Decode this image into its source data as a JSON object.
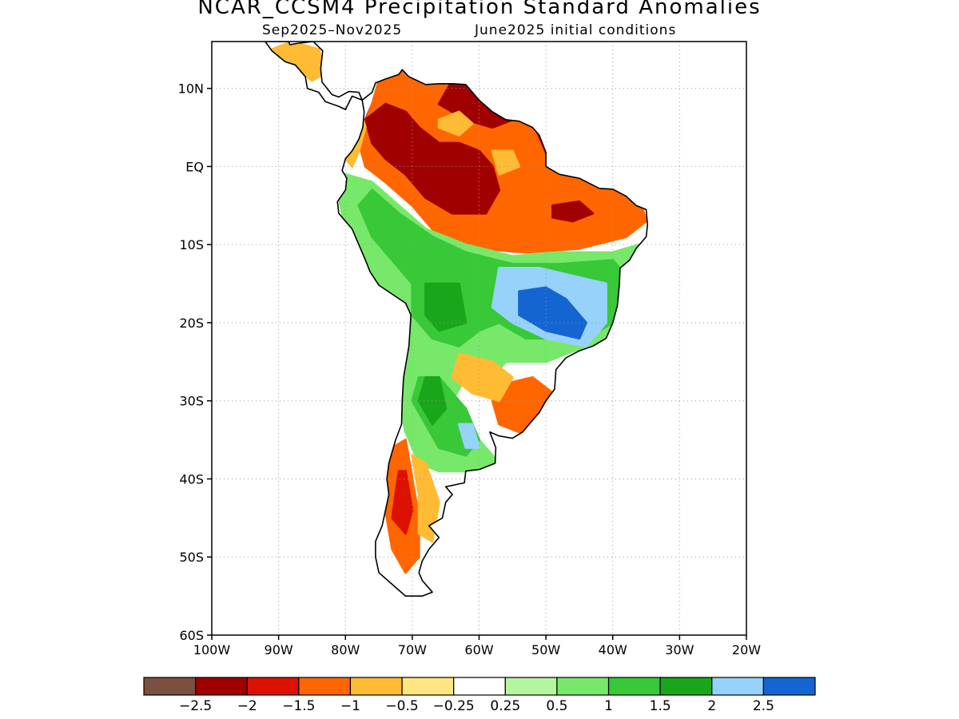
{
  "title": "NCAR_CCSM4 Precipitation Standard Anomalies",
  "subtitle_period": "Sep2025–Nov2025",
  "subtitle_init": "June2025 initial conditions",
  "lat_ticks": [
    {
      "value": 10,
      "label": "10N"
    },
    {
      "value": 0,
      "label": "EQ"
    },
    {
      "value": -10,
      "label": "10S"
    },
    {
      "value": -20,
      "label": "20S"
    },
    {
      "value": -30,
      "label": "30S"
    },
    {
      "value": -40,
      "label": "40S"
    },
    {
      "value": -50,
      "label": "50S"
    },
    {
      "value": -60,
      "label": "60S"
    }
  ],
  "lon_ticks": [
    {
      "value": -100,
      "label": "100W"
    },
    {
      "value": -90,
      "label": "90W"
    },
    {
      "value": -80,
      "label": "80W"
    },
    {
      "value": -70,
      "label": "70W"
    },
    {
      "value": -60,
      "label": "60W"
    },
    {
      "value": -50,
      "label": "50W"
    },
    {
      "value": -40,
      "label": "40W"
    },
    {
      "value": -30,
      "label": "30W"
    },
    {
      "value": -20,
      "label": "20W"
    }
  ],
  "map_extent": {
    "lon_min": -100,
    "lon_max": -20,
    "lat_min": -60,
    "lat_max": 16
  },
  "colorbar": {
    "colors": [
      "#7a5040",
      "#a00000",
      "#dd1100",
      "#ff6600",
      "#ffbb33",
      "#ffe680",
      "#ffffff",
      "#b4f5a0",
      "#78e86a",
      "#38c838",
      "#1aa61a",
      "#96d2fa",
      "#1464d2"
    ],
    "labels": [
      "−2.5",
      "−2",
      "−1.5",
      "−1",
      "−0.5",
      "−0.25",
      "0.25",
      "0.5",
      "1",
      "1.5",
      "2",
      "2.5"
    ]
  },
  "anomaly_regions": [
    {
      "level": -2.0,
      "color": "#dd1100",
      "polygon": [
        [
          -72,
          12
        ],
        [
          -70,
          12
        ],
        [
          -64,
          11
        ],
        [
          -61,
          10.5
        ],
        [
          -58,
          7
        ],
        [
          -54,
          6
        ],
        [
          -51,
          4
        ],
        [
          -50,
          1
        ],
        [
          -46,
          -1
        ],
        [
          -44,
          -2
        ],
        [
          -40,
          -3
        ],
        [
          -37,
          -5
        ],
        [
          -36,
          -7
        ],
        [
          -40,
          -9
        ],
        [
          -48,
          -10
        ],
        [
          -55,
          -10
        ],
        [
          -62,
          -9
        ],
        [
          -66,
          -7
        ],
        [
          -70,
          -4
        ],
        [
          -73,
          -1
        ],
        [
          -76,
          2
        ],
        [
          -77,
          6
        ],
        [
          -75,
          10
        ]
      ]
    },
    {
      "level": -1.0,
      "color": "#ff6600",
      "polygon": [
        [
          -73,
          13
        ],
        [
          -64,
          12
        ],
        [
          -60,
          10
        ],
        [
          -56,
          7
        ],
        [
          -52,
          5
        ],
        [
          -50,
          1
        ],
        [
          -45,
          -1
        ],
        [
          -40,
          -2.5
        ],
        [
          -36,
          -4
        ],
        [
          -35,
          -7
        ],
        [
          -38,
          -9
        ],
        [
          -45,
          -10.5
        ],
        [
          -53,
          -11
        ],
        [
          -60,
          -10.5
        ],
        [
          -66,
          -9
        ],
        [
          -70,
          -5
        ],
        [
          -74,
          -2
        ],
        [
          -77,
          0
        ],
        [
          -78,
          3
        ],
        [
          -76,
          8
        ],
        [
          -75,
          11
        ]
      ]
    },
    {
      "level": -2.5,
      "color": "#a00000",
      "polygon": [
        [
          -77,
          6
        ],
        [
          -74,
          8
        ],
        [
          -71,
          7
        ],
        [
          -69,
          5
        ],
        [
          -66,
          3
        ],
        [
          -63,
          3
        ],
        [
          -60,
          2
        ],
        [
          -58,
          0
        ],
        [
          -57,
          -3
        ],
        [
          -59,
          -6
        ],
        [
          -64,
          -6
        ],
        [
          -68,
          -4
        ],
        [
          -71,
          -1
        ],
        [
          -74,
          1
        ],
        [
          -76,
          3
        ]
      ]
    },
    {
      "level": -2.5,
      "color": "#a00000",
      "polygon": [
        [
          -49,
          -5
        ],
        [
          -45,
          -4.5
        ],
        [
          -43,
          -6
        ],
        [
          -46,
          -7
        ],
        [
          -49,
          -6.5
        ]
      ]
    },
    {
      "level": -2.5,
      "color": "#a00000",
      "polygon": [
        [
          -64,
          11
        ],
        [
          -60,
          10
        ],
        [
          -57,
          8
        ],
        [
          -55,
          6
        ],
        [
          -58,
          5
        ],
        [
          -62,
          6
        ],
        [
          -66,
          8
        ]
      ]
    },
    {
      "level": -0.5,
      "color": "#ffbb33",
      "polygon": [
        [
          -80,
          7.5
        ],
        [
          -78,
          8
        ],
        [
          -77,
          5
        ],
        [
          -78,
          2
        ],
        [
          -79,
          0
        ],
        [
          -80,
          1
        ]
      ]
    },
    {
      "level": -0.5,
      "color": "#ffbb33",
      "polygon": [
        [
          -66,
          6
        ],
        [
          -63,
          7
        ],
        [
          -61,
          5.5
        ],
        [
          -63,
          4
        ],
        [
          -66,
          5
        ]
      ]
    },
    {
      "level": -0.5,
      "color": "#ffbb33",
      "polygon": [
        [
          -58,
          2
        ],
        [
          -55,
          2
        ],
        [
          -54,
          0
        ],
        [
          -57,
          -1
        ]
      ]
    },
    {
      "level": -0.5,
      "color": "#ffbb33",
      "polygon": [
        [
          -91,
          15
        ],
        [
          -88,
          16
        ],
        [
          -84,
          15
        ],
        [
          -83,
          12
        ],
        [
          -85,
          11
        ],
        [
          -88,
          13
        ]
      ]
    },
    {
      "level": 1.0,
      "color": "#78e86a",
      "polygon": [
        [
          -80,
          -1
        ],
        [
          -76,
          -2
        ],
        [
          -72,
          -5
        ],
        [
          -68,
          -8
        ],
        [
          -62,
          -10
        ],
        [
          -55,
          -11.5
        ],
        [
          -48,
          -11
        ],
        [
          -40,
          -11
        ],
        [
          -36,
          -10
        ],
        [
          -35,
          -13
        ],
        [
          -37,
          -20
        ],
        [
          -40,
          -22
        ],
        [
          -44,
          -23
        ],
        [
          -50,
          -25
        ],
        [
          -56,
          -25
        ],
        [
          -58,
          -27
        ],
        [
          -62,
          -27
        ],
        [
          -64,
          -30
        ],
        [
          -60,
          -35
        ],
        [
          -57,
          -38
        ],
        [
          -62,
          -39
        ],
        [
          -66,
          -39
        ],
        [
          -69,
          -38
        ],
        [
          -71,
          -34
        ],
        [
          -72,
          -30
        ],
        [
          -71,
          -25
        ],
        [
          -70,
          -20
        ],
        [
          -72,
          -17
        ],
        [
          -76,
          -15
        ],
        [
          -77,
          -12
        ],
        [
          -80,
          -8
        ],
        [
          -81,
          -4
        ]
      ]
    },
    {
      "level": 1.5,
      "color": "#38c838",
      "polygon": [
        [
          -76,
          -3
        ],
        [
          -72,
          -6
        ],
        [
          -67,
          -9
        ],
        [
          -62,
          -11
        ],
        [
          -55,
          -12.5
        ],
        [
          -48,
          -12.5
        ],
        [
          -40,
          -12
        ],
        [
          -38,
          -14
        ],
        [
          -38,
          -19
        ],
        [
          -42,
          -21
        ],
        [
          -48,
          -22
        ],
        [
          -53,
          -22
        ],
        [
          -57,
          -20
        ],
        [
          -60,
          -21
        ],
        [
          -63,
          -23
        ],
        [
          -67,
          -22
        ],
        [
          -70,
          -19
        ],
        [
          -70,
          -15
        ],
        [
          -73,
          -12
        ],
        [
          -76,
          -9
        ],
        [
          -78,
          -5
        ]
      ]
    },
    {
      "level": 1.5,
      "color": "#38c838",
      "polygon": [
        [
          -69,
          -27
        ],
        [
          -66,
          -27
        ],
        [
          -62,
          -31
        ],
        [
          -60,
          -35
        ],
        [
          -62,
          -37
        ],
        [
          -66,
          -36
        ],
        [
          -68,
          -33
        ],
        [
          -70,
          -30
        ]
      ]
    },
    {
      "level": 2.0,
      "color": "#1aa61a",
      "polygon": [
        [
          -68,
          -15
        ],
        [
          -63,
          -15
        ],
        [
          -62,
          -20
        ],
        [
          -66,
          -21
        ],
        [
          -68,
          -19
        ]
      ]
    },
    {
      "level": 2.0,
      "color": "#1aa61a",
      "polygon": [
        [
          -68,
          -27
        ],
        [
          -66,
          -27
        ],
        [
          -65,
          -31
        ],
        [
          -67,
          -33
        ],
        [
          -69,
          -30
        ]
      ]
    },
    {
      "level": 2.5,
      "color": "#96d2fa",
      "polygon": [
        [
          -57,
          -13
        ],
        [
          -51,
          -13
        ],
        [
          -46,
          -14
        ],
        [
          -41,
          -15
        ],
        [
          -41,
          -20
        ],
        [
          -44,
          -23
        ],
        [
          -50,
          -22
        ],
        [
          -55,
          -20
        ],
        [
          -58,
          -18
        ]
      ]
    },
    {
      "level": 2.5,
      "color": "#96d2fa",
      "polygon": [
        [
          -63,
          -33
        ],
        [
          -61,
          -33
        ],
        [
          -60,
          -36
        ],
        [
          -62,
          -36
        ]
      ]
    },
    {
      "level": 2.5,
      "color": "#1464d2",
      "polygon": [
        [
          -54,
          -16
        ],
        [
          -50,
          -15.5
        ],
        [
          -47,
          -17
        ],
        [
          -44,
          -20
        ],
        [
          -45,
          -22
        ],
        [
          -50,
          -21
        ],
        [
          -54,
          -19
        ]
      ]
    },
    {
      "level": -1.0,
      "color": "#ff6600",
      "polygon": [
        [
          -57,
          -28
        ],
        [
          -52,
          -27
        ],
        [
          -49,
          -29
        ],
        [
          -50,
          -32
        ],
        [
          -54,
          -34
        ],
        [
          -57,
          -33
        ],
        [
          -58,
          -30
        ]
      ]
    },
    {
      "level": -0.5,
      "color": "#ffbb33",
      "polygon": [
        [
          -63,
          -24
        ],
        [
          -58,
          -25
        ],
        [
          -55,
          -27
        ],
        [
          -57,
          -30
        ],
        [
          -61,
          -29
        ],
        [
          -64,
          -27
        ]
      ]
    },
    {
      "level": -1.0,
      "color": "#ff6600",
      "polygon": [
        [
          -73,
          -36
        ],
        [
          -71,
          -35
        ],
        [
          -70,
          -40
        ],
        [
          -69,
          -45
        ],
        [
          -69,
          -50
        ],
        [
          -71,
          -52
        ],
        [
          -73,
          -49
        ],
        [
          -74,
          -44
        ],
        [
          -75,
          -40
        ]
      ]
    },
    {
      "level": -1.5,
      "color": "#dd1100",
      "polygon": [
        [
          -72,
          -39
        ],
        [
          -71,
          -39
        ],
        [
          -70,
          -44
        ],
        [
          -71,
          -47
        ],
        [
          -73,
          -45
        ]
      ]
    },
    {
      "level": -0.5,
      "color": "#ffbb33",
      "polygon": [
        [
          -70,
          -37
        ],
        [
          -68,
          -38
        ],
        [
          -66,
          -43
        ],
        [
          -67,
          -48
        ],
        [
          -69,
          -47
        ],
        [
          -69,
          -42
        ]
      ]
    }
  ],
  "south_america_outline": [
    [
      -77.5,
      8.5
    ],
    [
      -76,
      9.5
    ],
    [
      -75.5,
      10.7
    ],
    [
      -74,
      11.2
    ],
    [
      -72,
      11.8
    ],
    [
      -71.5,
      12.4
    ],
    [
      -70.5,
      11.5
    ],
    [
      -68,
      10.5
    ],
    [
      -66,
      10.6
    ],
    [
      -64,
      10.6
    ],
    [
      -62,
      10.5
    ],
    [
      -61,
      9.5
    ],
    [
      -60,
      8.5
    ],
    [
      -58,
      7
    ],
    [
      -56,
      6
    ],
    [
      -54,
      5.8
    ],
    [
      -52,
      5
    ],
    [
      -51,
      4
    ],
    [
      -50,
      1.8
    ],
    [
      -50,
      0
    ],
    [
      -48,
      -1
    ],
    [
      -45,
      -1.5
    ],
    [
      -42,
      -2.8
    ],
    [
      -40,
      -2.9
    ],
    [
      -38,
      -3.8
    ],
    [
      -36.5,
      -5
    ],
    [
      -35,
      -5.5
    ],
    [
      -34.8,
      -7.5
    ],
    [
      -35,
      -9
    ],
    [
      -36.5,
      -10.5
    ],
    [
      -37.5,
      -12
    ],
    [
      -38.9,
      -13
    ],
    [
      -39,
      -15
    ],
    [
      -39.3,
      -17.8
    ],
    [
      -40,
      -20
    ],
    [
      -41,
      -22
    ],
    [
      -43,
      -23
    ],
    [
      -45,
      -23.6
    ],
    [
      -47,
      -24.5
    ],
    [
      -48.5,
      -26
    ],
    [
      -48.7,
      -28.5
    ],
    [
      -50,
      -30
    ],
    [
      -51,
      -31.5
    ],
    [
      -52.5,
      -33
    ],
    [
      -53.5,
      -34
    ],
    [
      -55,
      -34.8
    ],
    [
      -57,
      -34.5
    ],
    [
      -58.4,
      -34
    ],
    [
      -57.5,
      -36
    ],
    [
      -57.6,
      -38
    ],
    [
      -60,
      -38.8
    ],
    [
      -62,
      -39
    ],
    [
      -62.2,
      -40.5
    ],
    [
      -65,
      -41
    ],
    [
      -64,
      -42
    ],
    [
      -65,
      -43
    ],
    [
      -65.5,
      -45
    ],
    [
      -67.5,
      -46
    ],
    [
      -66,
      -47.5
    ],
    [
      -67.5,
      -49
    ],
    [
      -68.5,
      -50.5
    ],
    [
      -69,
      -52
    ],
    [
      -68.5,
      -53
    ],
    [
      -67,
      -54.5
    ],
    [
      -68.5,
      -55
    ],
    [
      -71,
      -55
    ],
    [
      -73,
      -53.5
    ],
    [
      -75,
      -52
    ],
    [
      -75.5,
      -50
    ],
    [
      -75.5,
      -48
    ],
    [
      -74.5,
      -46
    ],
    [
      -74,
      -44
    ],
    [
      -73.5,
      -42
    ],
    [
      -73.8,
      -40
    ],
    [
      -73.5,
      -38
    ],
    [
      -72.5,
      -35
    ],
    [
      -71.6,
      -33
    ],
    [
      -71.5,
      -30
    ],
    [
      -71.3,
      -27
    ],
    [
      -70.5,
      -23
    ],
    [
      -70.2,
      -19
    ],
    [
      -71,
      -17.5
    ],
    [
      -75,
      -15.2
    ],
    [
      -76.3,
      -13.5
    ],
    [
      -77,
      -12
    ],
    [
      -79,
      -8
    ],
    [
      -81,
      -6
    ],
    [
      -81.2,
      -4.5
    ],
    [
      -80,
      -3
    ],
    [
      -79.8,
      -1.5
    ],
    [
      -80.5,
      -0.5
    ],
    [
      -80,
      1
    ],
    [
      -79,
      2
    ],
    [
      -78,
      3.5
    ],
    [
      -77.4,
      5
    ],
    [
      -77.2,
      7
    ],
    [
      -77.5,
      8.5
    ]
  ],
  "central_america_outline": [
    [
      -92,
      16
    ],
    [
      -91,
      14.8
    ],
    [
      -89,
      13.4
    ],
    [
      -87.5,
      13
    ],
    [
      -86,
      11.5
    ],
    [
      -85.7,
      10
    ],
    [
      -84,
      9.5
    ],
    [
      -83,
      8.3
    ],
    [
      -81,
      7.7
    ],
    [
      -80,
      7.3
    ],
    [
      -79,
      9
    ],
    [
      -77.5,
      8.5
    ],
    [
      -78,
      9.5
    ],
    [
      -79.5,
      9.6
    ],
    [
      -81,
      8.9
    ],
    [
      -82,
      9.2
    ],
    [
      -83.5,
      10.8
    ],
    [
      -83.7,
      12.5
    ],
    [
      -83.4,
      14.8
    ],
    [
      -84.8,
      16
    ],
    [
      -87,
      15.8
    ],
    [
      -88.3,
      15.6
    ],
    [
      -88.5,
      16
    ]
  ]
}
